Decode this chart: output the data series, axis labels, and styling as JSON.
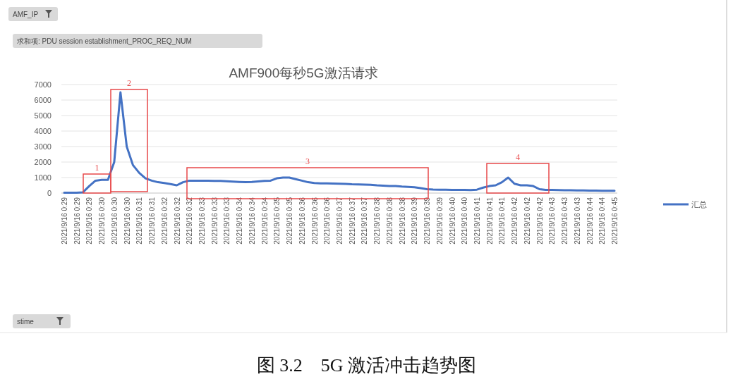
{
  "chart_data": {
    "type": "line",
    "title": "AMF900每秒5G激活请求",
    "annotations": [
      "AMF_IP",
      "求和项: PDU session establishment_PROC_REQ_NUM",
      "stime",
      "图 3.2　5G 激活冲击趋势图",
      "1",
      "2",
      "3",
      "4"
    ],
    "categories": [
      "2021/9/16 0:29",
      null,
      "2021/9/16 0:29",
      null,
      "2021/9/16 0:29",
      null,
      "2021/9/16 0:30",
      null,
      "2021/9/16 0:30",
      null,
      "2021/9/16 0:30",
      null,
      "2021/9/16 0:31",
      null,
      "2021/9/16 0:31",
      null,
      "2021/9/16 0:32",
      null,
      "2021/9/16 0:32",
      null,
      "2021/9/16 0:32",
      null,
      "2021/9/16 0:33",
      null,
      "2021/9/16 0:33",
      null,
      "2021/9/16 0:33",
      null,
      "2021/9/16 0:34",
      null,
      "2021/9/16 0:34",
      null,
      "2021/9/16 0:34",
      null,
      "2021/9/16 0:35",
      null,
      "2021/9/16 0:35",
      null,
      "2021/9/16 0:36",
      null,
      "2021/9/16 0:36",
      null,
      "2021/9/16 0:36",
      null,
      "2021/9/16 0:37",
      null,
      "2021/9/16 0:37",
      null,
      "2021/9/16 0:37",
      null,
      "2021/9/16 0:38",
      null,
      "2021/9/16 0:38",
      null,
      "2021/9/16 0:38",
      null,
      "2021/9/16 0:39",
      null,
      "2021/9/16 0:39",
      null,
      "2021/9/16 0:39",
      null,
      "2021/9/16 0:40",
      null,
      "2021/9/16 0:40",
      null,
      "2021/9/16 0:41",
      null,
      "2021/9/16 0:41",
      null,
      "2021/9/16 0:41",
      null,
      "2021/9/16 0:42",
      null,
      "2021/9/16 0:42",
      null,
      "2021/9/16 0:42",
      null,
      "2021/9/16 0:43",
      null,
      "2021/9/16 0:43",
      null,
      "2021/9/16 0:43",
      null,
      "2021/9/16 0:44",
      null,
      "2021/9/16 0:44",
      null,
      "2021/9/16 0:45"
    ],
    "series": [
      {
        "name": "汇总",
        "color": "#4472c4",
        "values": [
          20,
          20,
          20,
          50,
          450,
          800,
          850,
          850,
          2000,
          6500,
          3000,
          1800,
          1300,
          950,
          800,
          700,
          650,
          580,
          500,
          700,
          800,
          800,
          800,
          790,
          780,
          780,
          760,
          740,
          720,
          700,
          720,
          750,
          780,
          800,
          950,
          1000,
          1000,
          900,
          800,
          700,
          650,
          630,
          620,
          610,
          600,
          590,
          570,
          560,
          550,
          530,
          500,
          480,
          460,
          450,
          420,
          400,
          370,
          320,
          250,
          230,
          220,
          220,
          210,
          200,
          200,
          190,
          220,
          350,
          450,
          500,
          700,
          1000,
          600,
          500,
          500,
          450,
          250,
          200,
          200,
          190,
          180,
          180,
          170,
          170,
          160,
          160,
          150,
          150,
          150
        ]
      }
    ],
    "ylim": [
      0,
      7000
    ],
    "yticks": [
      0,
      1000,
      2000,
      3000,
      4000,
      5000,
      6000,
      7000
    ],
    "grid": "y",
    "legend": "right",
    "marker": "none",
    "line_style": "solid"
  }
}
